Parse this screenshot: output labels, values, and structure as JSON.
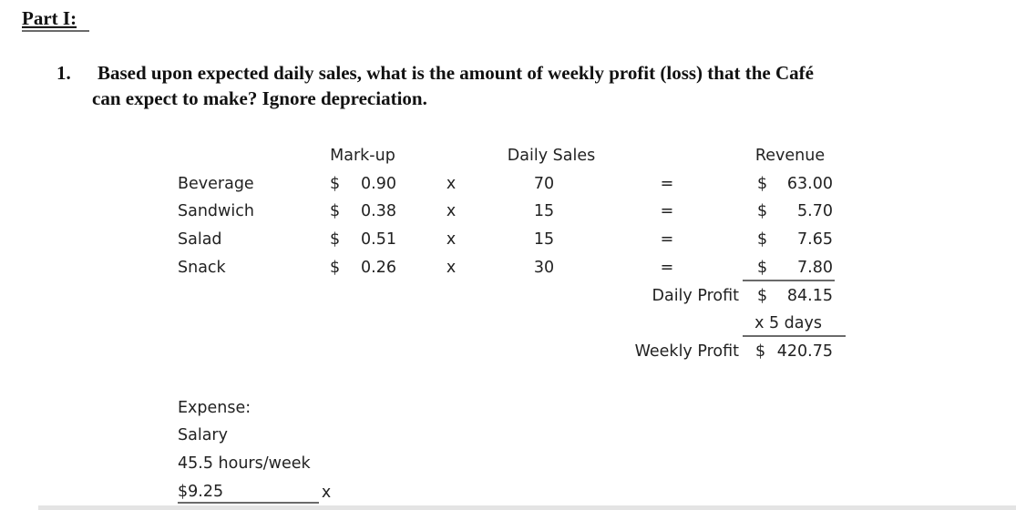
{
  "header": {
    "title": "Part I:"
  },
  "question": {
    "number": "1.",
    "lines": [
      "Based upon expected daily sales, what is the amount of weekly profit (loss) that the Café",
      "can expect to make?  Ignore depreciation."
    ]
  },
  "table": {
    "headers": {
      "markup": "Mark-up",
      "sales": "Daily Sales",
      "revenue": "Revenue"
    },
    "rows": [
      {
        "item": "Beverage",
        "markup_symbol": "$",
        "markup": "0.90",
        "times": "x",
        "sales": "70",
        "equals": "=",
        "revenue_symbol": "$",
        "revenue": "63.00"
      },
      {
        "item": "Sandwich",
        "markup_symbol": "$",
        "markup": "0.38",
        "times": "x",
        "sales": "15",
        "equals": "=",
        "revenue_symbol": "$",
        "revenue": "5.70"
      },
      {
        "item": "Salad",
        "markup_symbol": "$",
        "markup": "0.51",
        "times": "x",
        "sales": "15",
        "equals": "=",
        "revenue_symbol": "$",
        "revenue": "7.65"
      },
      {
        "item": "Snack",
        "markup_symbol": "$",
        "markup": "0.26",
        "times": "x",
        "sales": "30",
        "equals": "=",
        "revenue_symbol": "$",
        "revenue": "7.80"
      }
    ],
    "daily_profit": {
      "label": "Daily Profit",
      "symbol": "$",
      "amount": "84.15"
    },
    "multiplier": "x 5 days",
    "weekly_profit": {
      "label": "Weekly Profit",
      "symbol": "$",
      "amount": "420.75"
    }
  },
  "expense": {
    "lines": [
      "Expense:",
      "Salary",
      "45.5 hours/week",
      "$9.25"
    ],
    "times": "x"
  }
}
